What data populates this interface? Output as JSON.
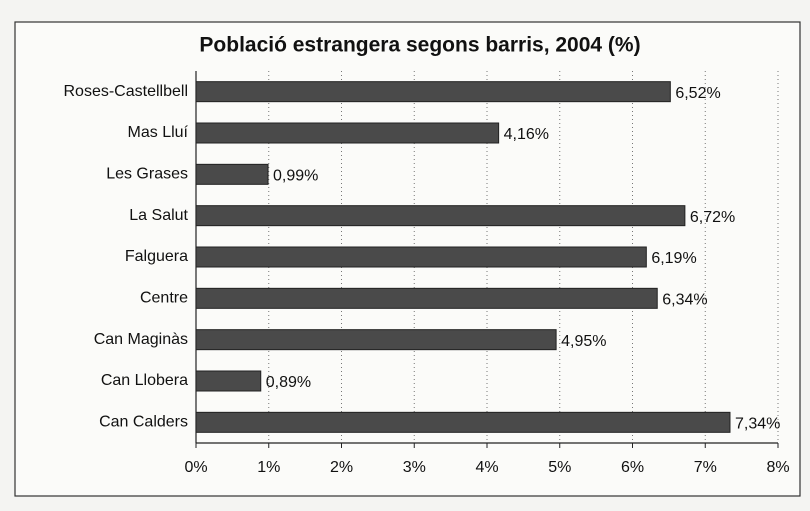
{
  "chart_data": {
    "type": "bar",
    "orientation": "horizontal",
    "title": "Població estrangera segons barris, 2004 (%)",
    "categories": [
      "Roses-Castellbell",
      "Mas Lluí",
      "Les Grases",
      "La Salut",
      "Falguera",
      "Centre",
      "Can Maginàs",
      "Can Llobera",
      "Can Calders"
    ],
    "values": [
      6.52,
      4.16,
      0.99,
      6.72,
      6.19,
      6.34,
      4.95,
      0.89,
      7.34
    ],
    "value_labels": [
      "6,52%",
      "4,16%",
      "0,99%",
      "6,72%",
      "6,19%",
      "6,34%",
      "4,95%",
      "0,89%",
      "7,34%"
    ],
    "color": "#4a4a4a",
    "xlim": [
      0,
      8
    ],
    "xticks": [
      {
        "value": 0,
        "label": "0%"
      },
      {
        "value": 1,
        "label": "1%"
      },
      {
        "value": 2,
        "label": "2%"
      },
      {
        "value": 3,
        "label": "3%"
      },
      {
        "value": 4,
        "label": "4%"
      },
      {
        "value": 5,
        "label": "5%"
      },
      {
        "value": 6,
        "label": "6%"
      },
      {
        "value": 7,
        "label": "7%"
      },
      {
        "value": 8,
        "label": "8%"
      }
    ],
    "grid": true
  }
}
